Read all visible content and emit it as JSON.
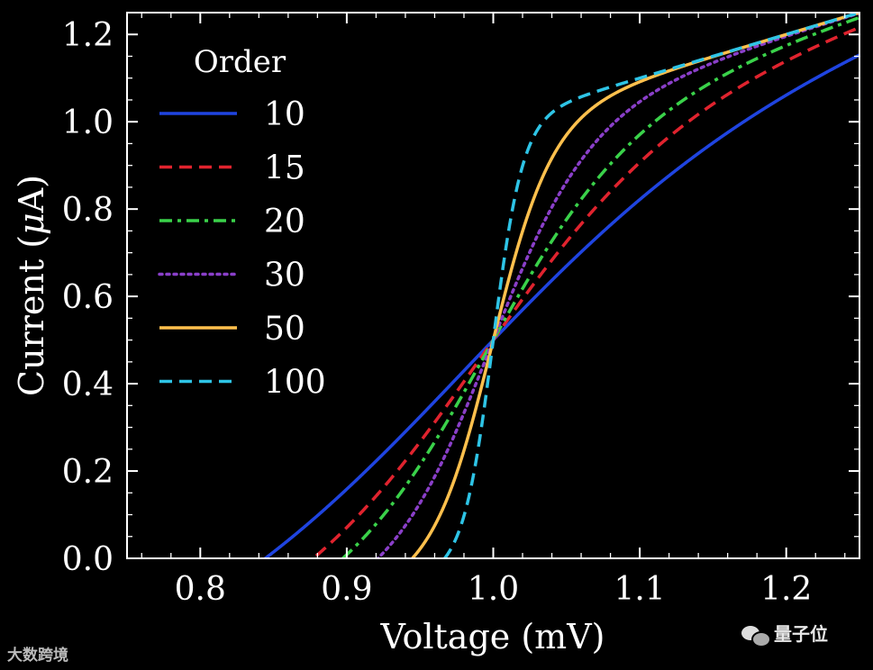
{
  "chart_data": {
    "type": "line",
    "xlabel": "Voltage (mV)",
    "ylabel_prefix": "Current (",
    "ylabel_mu": "μ",
    "ylabel_suffix": "A)",
    "xlim": [
      0.75,
      1.25
    ],
    "ylim": [
      0.0,
      1.25
    ],
    "xticks": [
      0.8,
      0.9,
      1.0,
      1.1,
      1.2
    ],
    "xtick_labels": [
      "0.8",
      "0.9",
      "1.0",
      "1.1",
      "1.2"
    ],
    "yticks": [
      0.0,
      0.2,
      0.4,
      0.6,
      0.8,
      1.0,
      1.2
    ],
    "ytick_labels": [
      "0.0",
      "0.2",
      "0.4",
      "0.6",
      "0.8",
      "1.0",
      "1.2"
    ],
    "grid": false,
    "legend": {
      "title": "Order",
      "placement": "upper-left"
    },
    "model": "y = x^n / (1 + x^n) + (x - 1)",
    "series": [
      {
        "name": "10",
        "order": 10,
        "color": "#1f44e0",
        "style": "solid"
      },
      {
        "name": "15",
        "order": 15,
        "color": "#e0232e",
        "style": "dashed"
      },
      {
        "name": "20",
        "order": 20,
        "color": "#3ad24a",
        "style": "dashdot"
      },
      {
        "name": "30",
        "order": 30,
        "color": "#8a3fc9",
        "style": "dotted"
      },
      {
        "name": "50",
        "order": 50,
        "color": "#ffc04d",
        "style": "solid"
      },
      {
        "name": "100",
        "order": 100,
        "color": "#2ec4e6",
        "style": "dashed"
      }
    ]
  },
  "watermarks": {
    "left": "大数跨境",
    "right": "量子位"
  }
}
